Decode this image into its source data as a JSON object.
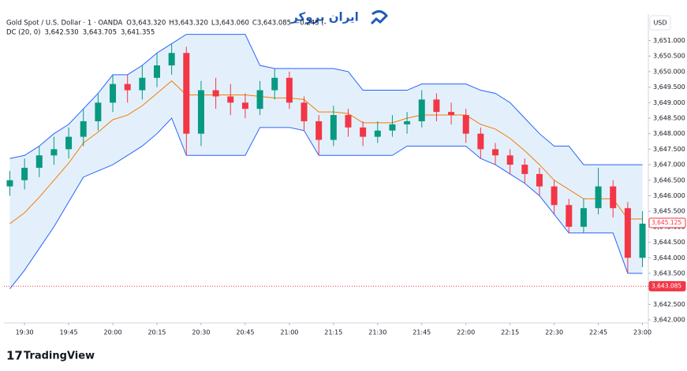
{
  "chart_data": {
    "type": "candlestick",
    "header": {
      "symbol": "Gold Spot / U.S. Dollar · 1 · OANDA",
      "ohlc": [
        "O3,643.320",
        "H3,643.320",
        "L3,643.060",
        "C3,643.085",
        "−0.245 (-"
      ],
      "indicator": "DC (20, 0)",
      "indicator_values": [
        "3,642.530",
        "3,643.705",
        "3,641.355"
      ],
      "indicator_colors": [
        "#f57c00",
        "#2962ff",
        "#2962ff"
      ]
    },
    "logo": "ایران بروکر",
    "footer": "TradingView",
    "currency": "USD",
    "x": [
      "19:25",
      "19:30",
      "19:35",
      "19:40",
      "19:45",
      "19:50",
      "19:55",
      "20:00",
      "20:05",
      "20:10",
      "20:15",
      "20:20",
      "20:25",
      "20:30",
      "20:35",
      "20:40",
      "20:45",
      "20:50",
      "20:55",
      "21:00",
      "21:05",
      "21:10",
      "21:15",
      "21:20",
      "21:25",
      "21:30",
      "21:35",
      "21:40",
      "21:45",
      "21:50",
      "21:55",
      "22:00",
      "22:05",
      "22:10",
      "22:15",
      "22:20",
      "22:25",
      "22:30",
      "22:35",
      "22:40",
      "22:45",
      "22:50",
      "22:55",
      "23:00"
    ],
    "open": [
      3646.3,
      3646.5,
      3646.9,
      3647.3,
      3647.5,
      3647.9,
      3648.4,
      3649.0,
      3649.6,
      3649.4,
      3649.8,
      3650.2,
      3650.6,
      3648.0,
      3649.4,
      3649.2,
      3649.0,
      3648.8,
      3649.4,
      3649.8,
      3649.0,
      3648.4,
      3647.8,
      3648.6,
      3648.2,
      3647.9,
      3648.1,
      3648.3,
      3648.4,
      3649.1,
      3648.7,
      3648.6,
      3648.0,
      3647.5,
      3647.3,
      3647.0,
      3646.7,
      3646.3,
      3645.7,
      3645.0,
      3645.6,
      3646.3,
      3645.6,
      3644.0
    ],
    "high": [
      3646.8,
      3647.2,
      3647.6,
      3647.9,
      3648.2,
      3648.8,
      3649.3,
      3649.9,
      3649.9,
      3650.2,
      3650.6,
      3650.9,
      3650.8,
      3649.7,
      3649.8,
      3649.6,
      3649.3,
      3649.7,
      3650.1,
      3650.0,
      3649.2,
      3648.6,
      3648.9,
      3648.8,
      3648.4,
      3648.4,
      3648.6,
      3648.7,
      3649.4,
      3649.3,
      3649.0,
      3648.8,
      3648.2,
      3647.7,
      3647.5,
      3647.2,
      3646.9,
      3646.5,
      3645.9,
      3645.9,
      3646.9,
      3646.5,
      3645.8,
      3645.5
    ],
    "low": [
      3646.0,
      3646.2,
      3646.6,
      3647.0,
      3647.2,
      3647.6,
      3648.1,
      3648.7,
      3649.0,
      3649.1,
      3649.5,
      3649.9,
      3647.3,
      3647.6,
      3648.8,
      3648.6,
      3648.5,
      3648.6,
      3649.1,
      3648.8,
      3648.1,
      3647.3,
      3647.6,
      3647.9,
      3647.6,
      3647.7,
      3647.9,
      3648.0,
      3648.2,
      3648.4,
      3648.3,
      3647.7,
      3647.2,
      3647.0,
      3646.7,
      3646.4,
      3646.0,
      3645.4,
      3644.8,
      3644.8,
      3645.4,
      3645.3,
      3643.5,
      3643.7
    ],
    "close": [
      3646.5,
      3646.9,
      3647.3,
      3647.5,
      3647.9,
      3648.4,
      3649.0,
      3649.6,
      3649.4,
      3649.8,
      3650.2,
      3650.6,
      3648.0,
      3649.4,
      3649.2,
      3649.0,
      3648.8,
      3649.4,
      3649.8,
      3649.0,
      3648.4,
      3647.8,
      3648.6,
      3648.2,
      3647.9,
      3648.1,
      3648.3,
      3648.4,
      3649.1,
      3648.7,
      3648.6,
      3648.0,
      3647.5,
      3647.3,
      3647.0,
      3646.7,
      3646.3,
      3645.7,
      3645.0,
      3645.6,
      3646.3,
      3645.6,
      3644.0,
      3645.1
    ],
    "up_color": "#089981",
    "down_color": "#f23645",
    "channel": {
      "fill": "#e3f0fb",
      "upper": {
        "color": "#2962ff",
        "values": [
          3647.2,
          3647.3,
          3647.6,
          3648.0,
          3648.3,
          3648.8,
          3649.3,
          3649.9,
          3649.9,
          3650.2,
          3650.6,
          3650.9,
          3651.2,
          3651.2,
          3651.2,
          3651.2,
          3651.2,
          3650.2,
          3650.1,
          3650.1,
          3650.1,
          3650.1,
          3650.1,
          3650.0,
          3649.4,
          3649.4,
          3649.4,
          3649.4,
          3649.6,
          3649.6,
          3649.6,
          3649.6,
          3649.4,
          3649.3,
          3649.0,
          3648.5,
          3648.0,
          3647.6,
          3647.6,
          3647.0,
          3647.0,
          3647.0,
          3647.0,
          3647.0
        ]
      },
      "lower": {
        "color": "#2962ff",
        "values": [
          3643.0,
          3643.6,
          3644.3,
          3645.0,
          3645.8,
          3646.6,
          3646.8,
          3647.0,
          3647.3,
          3647.6,
          3648.0,
          3648.5,
          3647.3,
          3647.3,
          3647.3,
          3647.3,
          3647.3,
          3648.2,
          3648.2,
          3648.2,
          3648.1,
          3647.3,
          3647.3,
          3647.3,
          3647.3,
          3647.3,
          3647.3,
          3647.6,
          3647.6,
          3647.6,
          3647.6,
          3647.6,
          3647.2,
          3647.0,
          3646.7,
          3646.4,
          3646.0,
          3645.4,
          3644.8,
          3644.8,
          3644.8,
          3644.8,
          3643.5,
          3643.5
        ]
      },
      "middle": {
        "color": "#f57c00",
        "values": [
          3645.1,
          3645.45,
          3645.95,
          3646.5,
          3647.05,
          3647.7,
          3648.05,
          3648.45,
          3648.6,
          3648.9,
          3649.3,
          3649.7,
          3649.25,
          3649.25,
          3649.25,
          3649.25,
          3649.25,
          3649.2,
          3649.15,
          3649.15,
          3649.1,
          3648.7,
          3648.7,
          3648.65,
          3648.35,
          3648.35,
          3648.35,
          3648.5,
          3648.6,
          3648.6,
          3648.6,
          3648.6,
          3648.3,
          3648.15,
          3647.85,
          3647.45,
          3647.0,
          3646.5,
          3646.2,
          3645.9,
          3645.9,
          3645.9,
          3645.25,
          3645.25
        ]
      }
    },
    "price_lines": [
      {
        "value": 3645.125,
        "label": "3,645.125",
        "color": "#f23645",
        "filled": false,
        "dotted": false
      },
      {
        "value": 3643.085,
        "label": "3,643.085",
        "color": "#f23645",
        "filled": true,
        "dotted": true
      }
    ],
    "xlim": [
      "19:23",
      "23:02"
    ],
    "xticks": [
      "19:30",
      "19:45",
      "20:00",
      "20:15",
      "20:30",
      "20:45",
      "21:00",
      "21:15",
      "21:30",
      "21:45",
      "22:00",
      "22:15",
      "22:30",
      "22:45",
      "23:00"
    ],
    "ylim": [
      3641.9,
      3651.8
    ],
    "yticks": [
      {
        "value": 3642,
        "label": "3,642.000"
      },
      {
        "value": 3642.5,
        "label": "3,642.500"
      },
      {
        "value": 3643,
        "label": "3,643.000"
      },
      {
        "value": 3643.5,
        "label": "3,643.500"
      },
      {
        "value": 3644,
        "label": "3,644.000"
      },
      {
        "value": 3644.5,
        "label": "3,644.500"
      },
      {
        "value": 3645,
        "label": "3,645.000"
      },
      {
        "value": 3645.5,
        "label": "3,645.500"
      },
      {
        "value": 3646,
        "label": "3,646.000"
      },
      {
        "value": 3646.5,
        "label": "3,646.500"
      },
      {
        "value": 3647,
        "label": "3,647.000"
      },
      {
        "value": 3647.5,
        "label": "3,647.500"
      },
      {
        "value": 3648,
        "label": "3,648.000"
      },
      {
        "value": 3648.5,
        "label": "3,648.500"
      },
      {
        "value": 3649,
        "label": "3,649.000"
      },
      {
        "value": 3649.5,
        "label": "3,649.500"
      },
      {
        "value": 3650,
        "label": "3,650.000"
      },
      {
        "value": 3650.5,
        "label": "3,650.500"
      },
      {
        "value": 3651,
        "label": "3,651.000"
      }
    ],
    "grid": false
  }
}
